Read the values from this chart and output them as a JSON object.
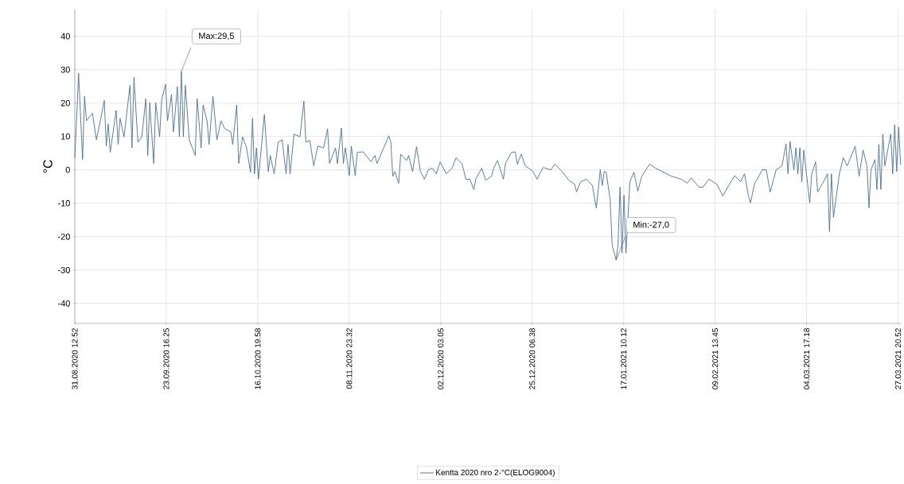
{
  "chart_data": {
    "type": "line",
    "ylabel": "°C",
    "x": [
      "2020-08-31T13:00",
      "2020-09-01T12:00",
      "2020-09-02T12:00",
      "2020-09-03T00:00",
      "2020-09-03T12:00",
      "2020-09-05T00:00",
      "2020-09-06T00:00",
      "2020-09-07T00:00",
      "2020-09-08T00:00",
      "2020-09-08T12:00",
      "2020-09-09T00:00",
      "2020-09-09T12:00",
      "2020-09-11T00:00",
      "2020-09-11T12:00",
      "2020-09-12T00:00",
      "2020-09-13T00:00",
      "2020-09-14T12:00",
      "2020-09-15T00:00",
      "2020-09-15T12:00",
      "2020-09-16T12:00",
      "2020-09-17T12:00",
      "2020-09-18T12:00",
      "2020-09-19T00:00",
      "2020-09-19T12:00",
      "2020-09-20T12:00",
      "2020-09-21T00:00",
      "2020-09-22T00:00",
      "2020-09-22T12:00",
      "2020-09-23T12:00",
      "2020-09-24T00:00",
      "2020-09-25T00:00",
      "2020-09-25T12:00",
      "2020-09-26T12:00",
      "2020-09-27T00:00",
      "2020-09-27T12:00",
      "2020-09-28T00:00",
      "2020-09-28T12:00",
      "2020-09-29T12:00",
      "2020-10-01T00:00",
      "2020-10-01T12:00",
      "2020-10-02T12:00",
      "2020-10-03T00:00",
      "2020-10-04T00:00",
      "2020-10-04T12:00",
      "2020-10-05T12:00",
      "2020-10-06T12:00",
      "2020-10-07T12:00",
      "2020-10-08T12:00",
      "2020-10-10T00:00",
      "2020-10-10T12:00",
      "2020-10-11T12:00",
      "2020-10-12T00:00",
      "2020-10-13T00:00",
      "2020-10-14T00:00",
      "2020-10-15T00:00",
      "2020-10-15T12:00",
      "2020-10-16T00:00",
      "2020-10-16T12:00",
      "2020-10-17T00:00",
      "2020-10-18T12:00",
      "2020-10-19T12:00",
      "2020-10-20T00:00",
      "2020-10-21T00:00",
      "2020-10-22T00:00",
      "2020-10-23T00:00",
      "2020-10-24T00:00",
      "2020-10-24T12:00",
      "2020-10-25T00:00",
      "2020-10-26T00:00",
      "2020-10-27T12:00",
      "2020-10-28T12:00",
      "2020-10-29T00:00",
      "2020-10-30T00:00",
      "2020-10-31T00:00",
      "2020-11-01T00:00",
      "2020-11-02T12:00",
      "2020-11-03T12:00",
      "2020-11-04T00:00",
      "2020-11-05T12:00",
      "2020-11-06T00:00",
      "2020-11-07T00:00",
      "2020-11-07T12:00",
      "2020-11-08T00:00",
      "2020-11-09T00:00",
      "2020-11-09T12:00",
      "2020-11-10T12:00",
      "2020-11-11T00:00",
      "2020-11-12T12:00",
      "2020-11-14T12:00",
      "2020-11-15T12:00",
      "2020-11-16T00:00",
      "2020-11-19T00:00",
      "2020-11-19T12:00",
      "2020-11-20T00:00",
      "2020-11-20T12:00",
      "2020-11-21T12:00",
      "2020-11-22T00:00",
      "2020-11-23T12:00",
      "2020-11-24T00:00",
      "2020-11-25T00:00",
      "2020-11-26T00:00",
      "2020-11-27T00:00",
      "2020-11-28T00:00",
      "2020-11-29T00:00",
      "2020-11-30T00:00",
      "2020-12-01T00:00",
      "2020-12-02T00:00",
      "2020-12-03T12:00",
      "2020-12-05T00:00",
      "2020-12-06T00:00",
      "2020-12-07T12:00",
      "2020-12-08T12:00",
      "2020-12-09T12:00",
      "2020-12-10T12:00",
      "2020-12-11T00:00",
      "2020-12-12T12:00",
      "2020-12-13T12:00",
      "2020-12-15T00:00",
      "2020-12-15T12:00",
      "2020-12-16T12:00",
      "2020-12-18T00:00",
      "2020-12-18T12:00",
      "2020-12-20T00:00",
      "2020-12-21T00:00",
      "2020-12-21T12:00",
      "2020-12-22T12:00",
      "2020-12-23T12:00",
      "2020-12-25T12:00",
      "2020-12-26T12:00",
      "2020-12-28T00:00",
      "2020-12-30T00:00",
      "2020-12-31T00:00",
      "2021-01-02T00:00",
      "2021-01-03T12:00",
      "2021-01-05T00:00",
      "2021-01-05T12:00",
      "2021-01-06T12:00",
      "2021-01-08T00:00",
      "2021-01-09T12:00",
      "2021-01-10T12:00",
      "2021-01-11T12:00",
      "2021-01-12T00:00",
      "2021-01-12T12:00",
      "2021-01-13T00:00",
      "2021-01-14T00:00",
      "2021-01-14T12:00",
      "2021-01-15T12:00",
      "2021-01-16T00:00",
      "2021-01-16T12:00",
      "2021-01-17T00:00",
      "2021-01-17T12:00",
      "2021-01-18T00:00",
      "2021-01-19T00:00",
      "2021-01-20T00:00",
      "2021-01-21T00:00",
      "2021-01-22T00:00",
      "2021-01-24T00:00",
      "2021-01-25T12:00",
      "2021-01-27T12:00",
      "2021-01-29T12:00",
      "2021-02-01T00:00",
      "2021-02-02T12:00",
      "2021-02-03T12:00",
      "2021-02-05T12:00",
      "2021-02-06T12:00",
      "2021-02-08T00:00",
      "2021-02-10T00:00",
      "2021-02-11T12:00",
      "2021-02-13T00:00",
      "2021-02-14T12:00",
      "2021-02-16T00:00",
      "2021-02-17T00:00",
      "2021-02-18T00:00",
      "2021-02-18T12:00",
      "2021-02-19T12:00",
      "2021-02-21T12:00",
      "2021-02-22T12:00",
      "2021-02-23T12:00",
      "2021-02-25T00:00",
      "2021-02-26T12:00",
      "2021-02-27T12:00",
      "2021-02-28T00:00",
      "2021-02-28T12:00",
      "2021-03-01T12:00",
      "2021-03-02T00:00",
      "2021-03-02T12:00",
      "2021-03-03T00:00",
      "2021-03-03T12:00",
      "2021-03-04T00:00",
      "2021-03-05T12:00",
      "2021-03-06T00:00",
      "2021-03-07T00:00",
      "2021-03-07T12:00",
      "2021-03-09T00:00",
      "2021-03-10T00:00",
      "2021-03-10T12:00",
      "2021-03-11T00:00",
      "2021-03-11T12:00",
      "2021-03-13T00:00",
      "2021-03-14T00:00",
      "2021-03-15T00:00",
      "2021-03-17T00:00",
      "2021-03-18T00:00",
      "2021-03-19T00:00",
      "2021-03-20T00:00",
      "2021-03-20T12:00",
      "2021-03-21T00:00",
      "2021-03-22T00:00",
      "2021-03-22T12:00",
      "2021-03-23T00:00",
      "2021-03-23T12:00",
      "2021-03-24T00:00",
      "2021-03-24T12:00",
      "2021-03-26T00:00",
      "2021-03-26T12:00",
      "2021-03-27T00:00",
      "2021-03-27T12:00",
      "2021-03-28T00:00",
      "2021-03-28T12:00"
    ],
    "series": [
      {
        "name": "Kentta 2020 nro 2-°C(ELOG9004)",
        "color": "#4a6f9a",
        "values": [
          3.5,
          28.9,
          3.1,
          22,
          14.7,
          17,
          9,
          14.7,
          20.8,
          7.1,
          13.7,
          5.2,
          17.8,
          7.6,
          15.4,
          9.9,
          25.3,
          6.6,
          27.7,
          8.3,
          9.9,
          21.3,
          4.3,
          20.1,
          1.9,
          20.1,
          9.9,
          20.8,
          25.6,
          14.7,
          22.5,
          11.4,
          24.9,
          9.9,
          29.5,
          9.9,
          25.3,
          9,
          4.3,
          21.3,
          6.6,
          19.4,
          14.7,
          7.6,
          22,
          9,
          14.7,
          12.3,
          11.4,
          7.6,
          19.4,
          1.9,
          9.9,
          6.6,
          -0.7,
          15.4,
          -1.2,
          6.6,
          -2.8,
          16.6,
          -0.5,
          4.3,
          -1.2,
          8.3,
          9,
          -1.2,
          7.6,
          -1.2,
          10.7,
          9.9,
          20.6,
          8.3,
          8.8,
          1.2,
          7.1,
          6.6,
          12.3,
          1.9,
          6.6,
          1.9,
          12.5,
          1.9,
          6.6,
          -1.7,
          7.1,
          -1.7,
          5.2,
          5.4,
          2.4,
          4.3,
          1.9,
          10.2,
          8.3,
          -1.9,
          -0.5,
          -4,
          4.7,
          2.8,
          4.3,
          -0.5,
          6.9,
          -0.5,
          -2.8,
          0,
          0.5,
          -1.2,
          2.4,
          -1.2,
          0.5,
          3.6,
          1.9,
          -2.8,
          -2.8,
          -5.9,
          -2.8,
          0.5,
          -3.1,
          -1.9,
          0.5,
          2.8,
          -2.8,
          1.9,
          5.2,
          5.4,
          1.7,
          4.7,
          1.2,
          -0.5,
          -2.8,
          0.7,
          0,
          1.7,
          -0.7,
          -3.1,
          -4.3,
          -6.6,
          -3.6,
          -2.8,
          -4.7,
          -11.4,
          0,
          -4.7,
          -0.5,
          -0.7,
          -9,
          -22.5,
          -27,
          -22.5,
          -5.2,
          -24.9,
          -7.6,
          -24.9,
          -3.6,
          -0.7,
          -6.4,
          -1.9,
          1.7,
          0.5,
          -0.7,
          -1.9,
          -2.8,
          -4,
          -2.4,
          -5.2,
          -5.2,
          -2.8,
          -4.3,
          -7.8,
          -4.7,
          -1.7,
          -3.6,
          -1.2,
          -7.8,
          -9.9,
          -4.3,
          0,
          0,
          -6.6,
          0,
          1.2,
          7.8,
          -1.2,
          8.5,
          0,
          6.6,
          -1.2,
          6.6,
          -3.6,
          5.9,
          -9.9,
          -1.2,
          2.4,
          -6.6,
          -3.6,
          -1.2,
          -18.5,
          -1.2,
          -14.2,
          -1.2,
          3.6,
          1.2,
          7.1,
          -1.9,
          5.9,
          1.2,
          -11.4,
          0,
          3.1,
          -5.9,
          7.6,
          -5.9,
          10.7,
          1.2,
          10.7,
          -1.2,
          13.5,
          -0.5,
          12.8,
          1.5
        ]
      }
    ],
    "xlim": [
      "2020-08-31T12:52",
      "2021-03-28T18:00"
    ],
    "xticks": [
      {
        "value": "2020-08-31T12:52",
        "label": "31.08.2020 12.52"
      },
      {
        "value": "2020-09-23T16:25",
        "label": "23.09.2020 16.25"
      },
      {
        "value": "2020-10-16T19:58",
        "label": "16.10.2020 19.58"
      },
      {
        "value": "2020-11-08T23:32",
        "label": "08.11.2020 23.32"
      },
      {
        "value": "2020-12-02T03:05",
        "label": "02.12.2020 03.05"
      },
      {
        "value": "2020-12-25T06:38",
        "label": "25.12.2020 06.38"
      },
      {
        "value": "2021-01-17T10:12",
        "label": "17.01.2021 10.12"
      },
      {
        "value": "2021-02-09T13:45",
        "label": "09.02.2021 13.45"
      },
      {
        "value": "2021-03-04T17:18",
        "label": "04.03.2021 17.18"
      },
      {
        "value": "2021-03-27T20:52",
        "label": "27.03.2021 20.52"
      }
    ],
    "ylim": [
      -46,
      48
    ],
    "yticks": [
      -40,
      -30,
      -20,
      -10,
      0,
      10,
      20,
      30,
      40
    ],
    "grid": true,
    "legend": "bottom",
    "marker": "none",
    "line_style": "solid",
    "annotations": [
      {
        "text": "Max:29,5",
        "x": "2020-09-27T12:00",
        "y": 29.5
      },
      {
        "text": "Min:-27,0",
        "x": "2021-01-15T12:00",
        "y": -27
      }
    ]
  }
}
